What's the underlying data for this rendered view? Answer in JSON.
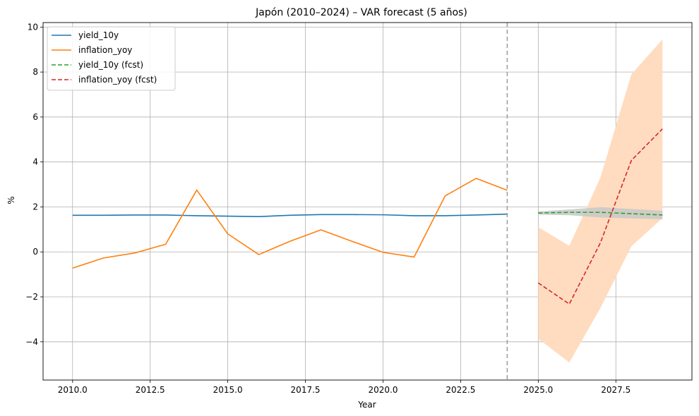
{
  "chart_data": {
    "type": "line",
    "title": "Japón (2010–2024) – VAR forecast (5 años)",
    "xlabel": "Year",
    "ylabel": "%",
    "xlim": [
      2009.05,
      2029.95
    ],
    "ylim": [
      -5.7,
      10.2
    ],
    "x_ticks": [
      2010.0,
      2012.5,
      2015.0,
      2017.5,
      2020.0,
      2022.5,
      2025.0,
      2027.5
    ],
    "x_tick_labels": [
      "2010.0",
      "2012.5",
      "2015.0",
      "2017.5",
      "2020.0",
      "2022.5",
      "2025.0",
      "2027.5"
    ],
    "y_ticks": [
      -4,
      -2,
      0,
      2,
      4,
      6,
      8,
      10
    ],
    "y_tick_labels": [
      "−4",
      "−2",
      "0",
      "2",
      "4",
      "6",
      "8",
      "10"
    ],
    "grid": true,
    "legend_position": "top-left",
    "forecast_start_marker": 2024,
    "series": [
      {
        "name": "yield_10y",
        "color": "#1f77b4",
        "dash": "solid",
        "x": [
          2010,
          2011,
          2012,
          2013,
          2014,
          2015,
          2016,
          2017,
          2018,
          2019,
          2020,
          2021,
          2022,
          2023,
          2024
        ],
        "values": [
          1.63,
          1.63,
          1.64,
          1.64,
          1.61,
          1.59,
          1.57,
          1.63,
          1.66,
          1.66,
          1.65,
          1.61,
          1.61,
          1.64,
          1.68
        ]
      },
      {
        "name": "inflation_yoy",
        "color": "#ff7f0e",
        "dash": "solid",
        "x": [
          2010,
          2011,
          2012,
          2013,
          2014,
          2015,
          2016,
          2017,
          2018,
          2019,
          2020,
          2021,
          2022,
          2023,
          2024
        ],
        "values": [
          -0.72,
          -0.27,
          -0.05,
          0.34,
          2.75,
          0.8,
          -0.12,
          0.47,
          0.98,
          0.47,
          -0.02,
          -0.23,
          2.49,
          3.27,
          2.74
        ]
      },
      {
        "name": "yield_10y (fcst)",
        "color": "#2ca02c",
        "dash": "dashed",
        "x": [
          2025,
          2026,
          2027,
          2028,
          2029
        ],
        "values": [
          1.73,
          1.76,
          1.76,
          1.7,
          1.64
        ],
        "band_lower": [
          1.66,
          1.63,
          1.53,
          1.49,
          1.45
        ],
        "band_upper": [
          1.8,
          1.89,
          1.99,
          1.91,
          1.83
        ]
      },
      {
        "name": "inflation_yoy (fcst)",
        "color": "#d62728",
        "dash": "dashed",
        "x": [
          2025,
          2026,
          2027,
          2028,
          2029
        ],
        "values": [
          -1.38,
          -2.32,
          0.4,
          4.07,
          5.47
        ],
        "band_lower": [
          -3.86,
          -4.92,
          -2.5,
          0.25,
          1.5
        ],
        "band_upper": [
          1.1,
          0.27,
          3.3,
          7.9,
          9.45
        ]
      }
    ],
    "band_colors": {
      "inflation_yoy (fcst)": "#ffdcbf",
      "yield_10y (fcst)": "#c8c8c8"
    }
  }
}
